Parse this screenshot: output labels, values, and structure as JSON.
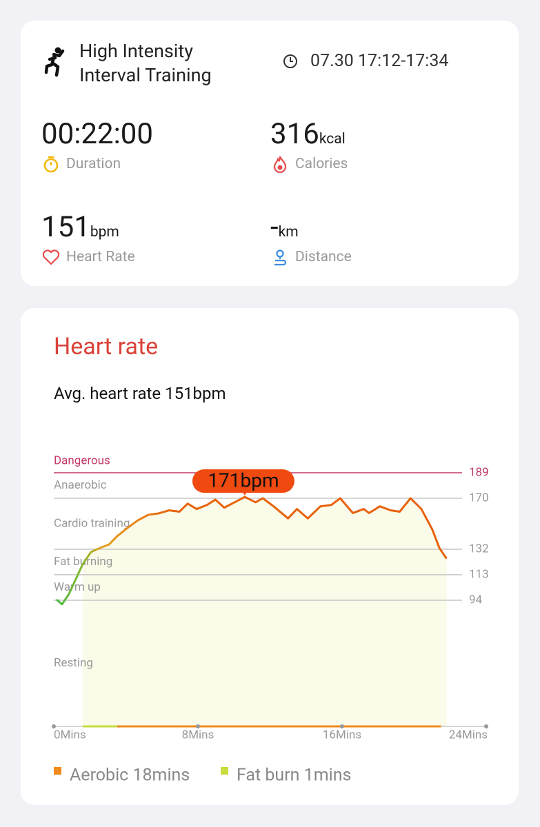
{
  "workout": {
    "title_line1": "High Intensity",
    "title_line2": "Interval Training",
    "time": "07.30 17:12-17:34"
  },
  "stats": {
    "duration": {
      "value": "00:22:00",
      "label": "Duration"
    },
    "calories": {
      "value": "316",
      "unit": "kcal",
      "label": "Calories"
    },
    "heart_rate": {
      "value": "151",
      "unit": "bpm",
      "label": "Heart Rate"
    },
    "distance": {
      "value": "-",
      "unit": "km",
      "label": "Distance"
    }
  },
  "heart_rate_card": {
    "title": "Heart rate",
    "average": "Avg. heart rate 151bpm"
  },
  "chart_data": {
    "type": "line",
    "x": [
      0.15,
      0.46,
      0.84,
      1.23,
      1.61,
      2.07,
      2.57,
      3.07,
      3.52,
      4.1,
      4.67,
      5.25,
      5.82,
      6.4,
      6.97,
      7.43,
      7.93,
      8.5,
      8.97,
      9.46,
      10.04,
      10.6,
      11.2,
      11.6,
      12.2,
      13.0,
      13.5,
      14.1,
      14.8,
      15.4,
      15.9,
      16.6,
      17.2,
      17.5,
      18.1,
      18.7,
      19.2,
      19.8,
      20.4,
      21.0,
      21.4,
      21.8
    ],
    "series": [
      {
        "name": "Heart rate",
        "color": "#e8620c",
        "values": [
          94.5,
          91,
          98.6,
          110,
          121,
          130,
          133,
          135.6,
          141.8,
          148,
          153.6,
          157.7,
          158.7,
          161,
          160,
          166,
          162,
          165,
          169,
          163,
          167,
          171,
          167,
          170,
          164,
          155,
          162,
          155,
          164,
          165,
          170,
          159,
          162,
          159,
          164,
          161,
          160,
          170,
          162,
          147,
          133,
          125
        ]
      }
    ],
    "xlim": [
      0,
      24
    ],
    "xticks": [
      {
        "value": 0,
        "label": "0Mins"
      },
      {
        "value": 8,
        "label": "8Mins"
      },
      {
        "value": 16,
        "label": "16Mins"
      },
      {
        "value": 24,
        "label": "24Mins"
      }
    ],
    "ylim": [
      0,
      189
    ],
    "yticks": [
      94,
      113,
      132,
      170,
      189
    ],
    "zones": [
      {
        "name": "Dangerous",
        "color": "#c2396a"
      },
      {
        "name": "Anaerobic",
        "color": "#999999"
      },
      {
        "name": "Cardio training",
        "color": "#999999"
      },
      {
        "name": "Fat burning",
        "color": "#999999"
      },
      {
        "name": "Warm up",
        "color": "#999999"
      },
      {
        "name": "Resting",
        "color": "#999999"
      }
    ],
    "annotation": {
      "label": "171bpm",
      "x": 10.6,
      "y": 171,
      "color": "#f04a10"
    },
    "legend": [
      {
        "name": "Aerobic 18mins",
        "color": "#f08a1c"
      },
      {
        "name": "Fat burn 1mins",
        "color": "#c8dc3c"
      }
    ]
  }
}
